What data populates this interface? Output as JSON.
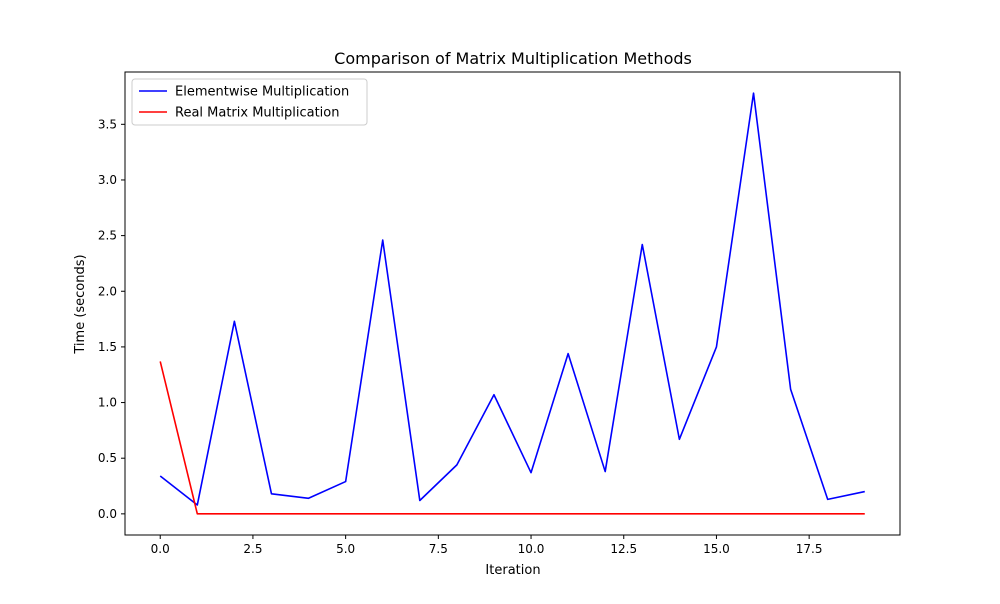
{
  "chart_data": {
    "type": "line",
    "title": "Comparison of Matrix Multiplication Methods",
    "xlabel": "Iteration",
    "ylabel": "Time (seconds)",
    "xlim": [
      -0.95,
      19.95
    ],
    "ylim": [
      -0.19,
      3.97
    ],
    "x_ticks": [
      0.0,
      2.5,
      5.0,
      7.5,
      10.0,
      12.5,
      15.0,
      17.5
    ],
    "x_tick_labels": [
      "0.0",
      "2.5",
      "5.0",
      "7.5",
      "10.0",
      "12.5",
      "15.0",
      "17.5"
    ],
    "y_ticks": [
      0.0,
      0.5,
      1.0,
      1.5,
      2.0,
      2.5,
      3.0,
      3.5
    ],
    "y_tick_labels": [
      "0.0",
      "0.5",
      "1.0",
      "1.5",
      "2.0",
      "2.5",
      "3.0",
      "3.5"
    ],
    "grid": false,
    "legend_position": "top-left",
    "x": [
      0,
      1,
      2,
      3,
      4,
      5,
      6,
      7,
      8,
      9,
      10,
      11,
      12,
      13,
      14,
      15,
      16,
      17,
      18,
      19
    ],
    "series": [
      {
        "name": "Elementwise Multiplication",
        "color": "#0000ff",
        "values": [
          0.34,
          0.08,
          1.73,
          0.18,
          0.14,
          0.29,
          2.46,
          0.12,
          0.44,
          1.07,
          0.37,
          1.44,
          0.38,
          2.42,
          0.67,
          1.5,
          3.78,
          1.12,
          0.13,
          0.2
        ]
      },
      {
        "name": "Real Matrix Multiplication",
        "color": "#ff0000",
        "values": [
          1.37,
          0.0,
          0.0,
          0.0,
          0.0,
          0.0,
          0.0,
          0.0,
          0.0,
          0.0,
          0.0,
          0.0,
          0.0,
          0.0,
          0.0,
          0.0,
          0.0,
          0.0,
          0.0,
          0.0
        ]
      }
    ]
  }
}
